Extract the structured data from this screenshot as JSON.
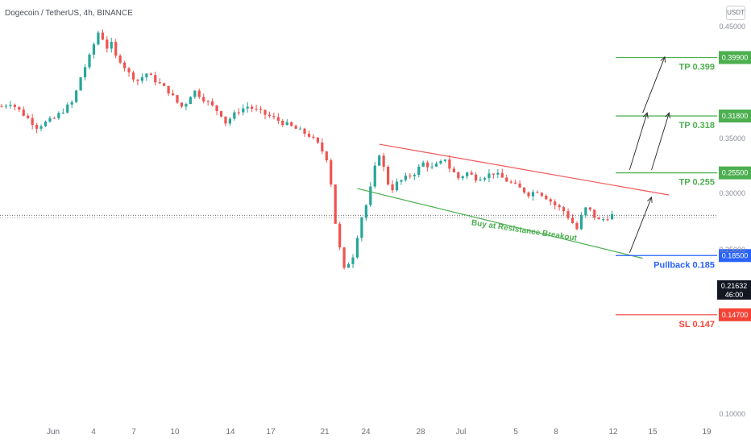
{
  "header": {
    "title": "Dogecoin / TetherUS, 4h, BINANCE"
  },
  "currency_button": {
    "label": "USDT"
  },
  "chart_data": {
    "type": "candlestick",
    "symbol": "Dogecoin / TetherUS",
    "interval": "4h",
    "exchange": "BINANCE",
    "y_axis": {
      "scale": "log",
      "ticks": [
        "0.45000",
        "0.35000",
        "0.30000",
        "0.25000",
        "0.10000"
      ]
    },
    "x_axis": {
      "ticks": [
        "Jun",
        "4",
        "7",
        "10",
        "14",
        "17",
        "21",
        "24",
        "28",
        "Jul",
        "5",
        "8",
        "12",
        "15",
        "19"
      ]
    },
    "current_price": {
      "label": "0.21632",
      "countdown": "46:00",
      "value": 0.21632
    },
    "levels": [
      {
        "name": "TP 0.399",
        "badge": "0.39900",
        "value": 0.399,
        "color": "#4caf50"
      },
      {
        "name": "TP 0.318",
        "badge": "0.31800",
        "value": 0.318,
        "color": "#4caf50"
      },
      {
        "name": "TP 0.255",
        "badge": "0.25500",
        "value": 0.255,
        "color": "#4caf50"
      },
      {
        "name": "Pullback 0.185",
        "badge": "0.18500",
        "value": 0.185,
        "color": "#2962ff"
      },
      {
        "name": "SL 0.147",
        "badge": "0.14700",
        "value": 0.147,
        "color": "#f44336"
      }
    ],
    "annotations": [
      {
        "text": "Buy at Resistance Breakout",
        "color": "#4caf50"
      }
    ],
    "price_path": [
      [
        0,
        0.33
      ],
      [
        2,
        0.335
      ],
      [
        4,
        0.325
      ],
      [
        6,
        0.315
      ],
      [
        8,
        0.305
      ],
      [
        10,
        0.31
      ],
      [
        12,
        0.315
      ],
      [
        14,
        0.325
      ],
      [
        16,
        0.335
      ],
      [
        17,
        0.35
      ],
      [
        18,
        0.37
      ],
      [
        20,
        0.4
      ],
      [
        21,
        0.42
      ],
      [
        22,
        0.44
      ],
      [
        23,
        0.43
      ],
      [
        24,
        0.415
      ],
      [
        25,
        0.42
      ],
      [
        26,
        0.4
      ],
      [
        27,
        0.395
      ],
      [
        28,
        0.385
      ],
      [
        29,
        0.375
      ],
      [
        30,
        0.37
      ],
      [
        31,
        0.365
      ],
      [
        32,
        0.37
      ],
      [
        33,
        0.375
      ],
      [
        34,
        0.37
      ],
      [
        36,
        0.36
      ],
      [
        38,
        0.35
      ],
      [
        40,
        0.335
      ],
      [
        41,
        0.33
      ],
      [
        42,
        0.335
      ],
      [
        43,
        0.345
      ],
      [
        44,
        0.35
      ],
      [
        46,
        0.34
      ],
      [
        48,
        0.33
      ],
      [
        50,
        0.32
      ],
      [
        51,
        0.31
      ],
      [
        52,
        0.315
      ],
      [
        54,
        0.325
      ],
      [
        56,
        0.33
      ],
      [
        58,
        0.325
      ],
      [
        60,
        0.32
      ],
      [
        62,
        0.315
      ],
      [
        64,
        0.31
      ],
      [
        66,
        0.305
      ],
      [
        68,
        0.3
      ],
      [
        70,
        0.295
      ],
      [
        72,
        0.285
      ],
      [
        74,
        0.27
      ],
      [
        75,
        0.245
      ],
      [
        76,
        0.21
      ],
      [
        77,
        0.19
      ],
      [
        78,
        0.175
      ],
      [
        79,
        0.18
      ],
      [
        80,
        0.185
      ],
      [
        81,
        0.2
      ],
      [
        82,
        0.215
      ],
      [
        83,
        0.225
      ],
      [
        84,
        0.24
      ],
      [
        85,
        0.26
      ],
      [
        86,
        0.275
      ],
      [
        87,
        0.26
      ],
      [
        88,
        0.245
      ],
      [
        89,
        0.24
      ],
      [
        90,
        0.245
      ],
      [
        92,
        0.25
      ],
      [
        94,
        0.255
      ],
      [
        96,
        0.265
      ],
      [
        98,
        0.26
      ],
      [
        100,
        0.265
      ],
      [
        101,
        0.27
      ],
      [
        102,
        0.26
      ],
      [
        104,
        0.25
      ],
      [
        106,
        0.255
      ],
      [
        108,
        0.25
      ],
      [
        110,
        0.252
      ],
      [
        112,
        0.255
      ],
      [
        114,
        0.25
      ],
      [
        116,
        0.245
      ],
      [
        118,
        0.24
      ],
      [
        120,
        0.235
      ],
      [
        122,
        0.238
      ],
      [
        124,
        0.232
      ],
      [
        126,
        0.225
      ],
      [
        128,
        0.22
      ],
      [
        129,
        0.215
      ],
      [
        130,
        0.21
      ],
      [
        131,
        0.205
      ],
      [
        132,
        0.215
      ],
      [
        133,
        0.222
      ],
      [
        134,
        0.22
      ],
      [
        135,
        0.215
      ],
      [
        136,
        0.212
      ],
      [
        137,
        0.213
      ],
      [
        138,
        0.215
      ],
      [
        139,
        0.2163
      ]
    ],
    "trendlines": {
      "resistance": {
        "color": "#f0595a",
        "from": [
          86,
          0.285
        ],
        "to": [
          152,
          0.234
        ]
      },
      "support": {
        "color": "#4caf50",
        "from": [
          81,
          0.24
        ],
        "to": [
          146,
          0.183
        ]
      }
    },
    "arrows": [
      {
        "from": [
          143,
          0.187
        ],
        "to": [
          148,
          0.232
        ]
      },
      {
        "from": [
          143,
          0.258
        ],
        "to": [
          147,
          0.322
        ]
      },
      {
        "from": [
          148,
          0.258
        ],
        "to": [
          152,
          0.322
        ]
      },
      {
        "from": [
          146,
          0.322
        ],
        "to": [
          151,
          0.4
        ]
      }
    ]
  }
}
